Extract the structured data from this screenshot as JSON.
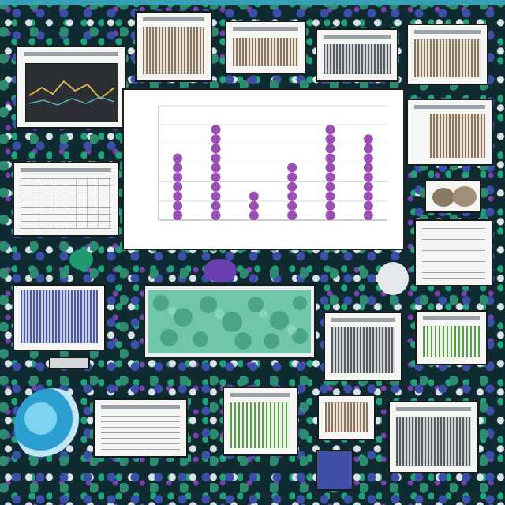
{
  "colors": {
    "background": "#0f2a30",
    "accent_teal": "#36a0b6",
    "mosaic_green": "#2e8b6f",
    "mosaic_blue": "#3b4fa8",
    "dot_purple": "#9b4fb5",
    "panel_white": "#f5f6f4"
  },
  "icons": {
    "teal_object": "teal-ceramic-object-icon",
    "coral_cluster": "green-coral-texture-icon",
    "stone": "brown-stone-icon"
  },
  "chart_data": {
    "type": "scatter",
    "categories": [
      "",
      "",
      "",
      "",
      "",
      ""
    ],
    "series": [
      {
        "values": [
          7,
          10,
          3,
          6,
          10,
          9
        ]
      }
    ],
    "title": "",
    "xlabel": "",
    "ylabel": "",
    "ylim": [
      0,
      12
    ],
    "grid": true,
    "legend": "none"
  }
}
